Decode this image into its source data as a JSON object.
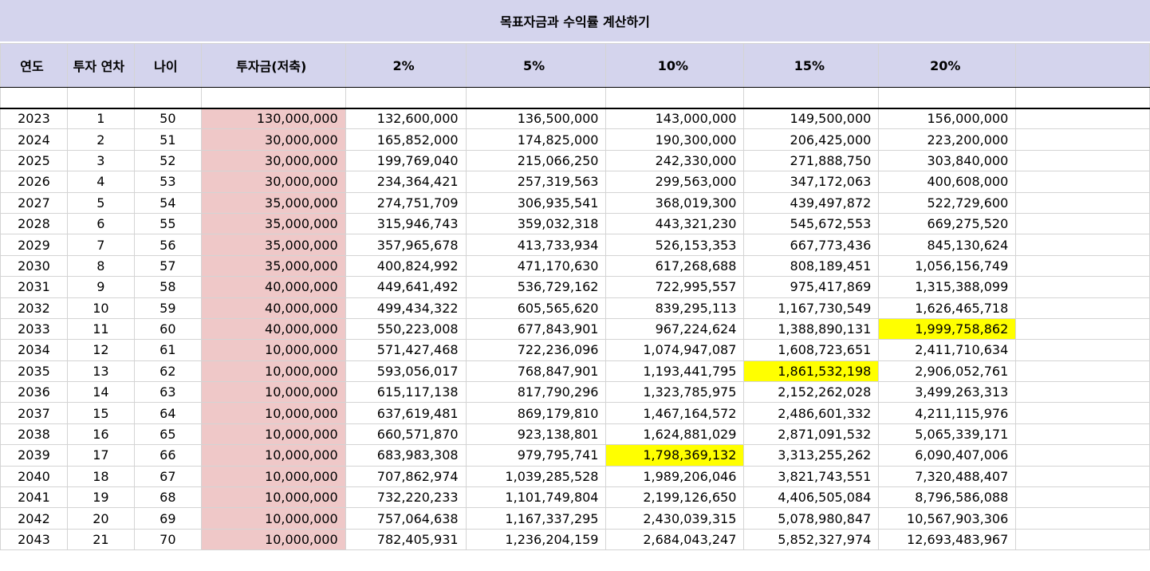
{
  "title": "목표자금과 수익률 계산하기",
  "headers": [
    "연도",
    "투자 연차",
    "나이",
    "투자금(저축)",
    "2%",
    "5%",
    "10%",
    "15%",
    "20%",
    ""
  ],
  "colors": {
    "header_bg": "#d4d4ed",
    "investment_bg": "#efc8c8",
    "highlight": "#ffff00"
  },
  "rows": [
    [
      "2023",
      "1",
      "50",
      "130,000,000",
      "132,600,000",
      "136,500,000",
      "143,000,000",
      "149,500,000",
      "156,000,000"
    ],
    [
      "2024",
      "2",
      "51",
      "30,000,000",
      "165,852,000",
      "174,825,000",
      "190,300,000",
      "206,425,000",
      "223,200,000"
    ],
    [
      "2025",
      "3",
      "52",
      "30,000,000",
      "199,769,040",
      "215,066,250",
      "242,330,000",
      "271,888,750",
      "303,840,000"
    ],
    [
      "2026",
      "4",
      "53",
      "30,000,000",
      "234,364,421",
      "257,319,563",
      "299,563,000",
      "347,172,063",
      "400,608,000"
    ],
    [
      "2027",
      "5",
      "54",
      "35,000,000",
      "274,751,709",
      "306,935,541",
      "368,019,300",
      "439,497,872",
      "522,729,600"
    ],
    [
      "2028",
      "6",
      "55",
      "35,000,000",
      "315,946,743",
      "359,032,318",
      "443,321,230",
      "545,672,553",
      "669,275,520"
    ],
    [
      "2029",
      "7",
      "56",
      "35,000,000",
      "357,965,678",
      "413,733,934",
      "526,153,353",
      "667,773,436",
      "845,130,624"
    ],
    [
      "2030",
      "8",
      "57",
      "35,000,000",
      "400,824,992",
      "471,170,630",
      "617,268,688",
      "808,189,451",
      "1,056,156,749"
    ],
    [
      "2031",
      "9",
      "58",
      "40,000,000",
      "449,641,492",
      "536,729,162",
      "722,995,557",
      "975,417,869",
      "1,315,388,099"
    ],
    [
      "2032",
      "10",
      "59",
      "40,000,000",
      "499,434,322",
      "605,565,620",
      "839,295,113",
      "1,167,730,549",
      "1,626,465,718"
    ],
    [
      "2033",
      "11",
      "60",
      "40,000,000",
      "550,223,008",
      "677,843,901",
      "967,224,624",
      "1,388,890,131",
      "1,999,758,862"
    ],
    [
      "2034",
      "12",
      "61",
      "10,000,000",
      "571,427,468",
      "722,236,096",
      "1,074,947,087",
      "1,608,723,651",
      "2,411,710,634"
    ],
    [
      "2035",
      "13",
      "62",
      "10,000,000",
      "593,056,017",
      "768,847,901",
      "1,193,441,795",
      "1,861,532,198",
      "2,906,052,761"
    ],
    [
      "2036",
      "14",
      "63",
      "10,000,000",
      "615,117,138",
      "817,790,296",
      "1,323,785,975",
      "2,152,262,028",
      "3,499,263,313"
    ],
    [
      "2037",
      "15",
      "64",
      "10,000,000",
      "637,619,481",
      "869,179,810",
      "1,467,164,572",
      "2,486,601,332",
      "4,211,115,976"
    ],
    [
      "2038",
      "16",
      "65",
      "10,000,000",
      "660,571,870",
      "923,138,801",
      "1,624,881,029",
      "2,871,091,532",
      "5,065,339,171"
    ],
    [
      "2039",
      "17",
      "66",
      "10,000,000",
      "683,983,308",
      "979,795,741",
      "1,798,369,132",
      "3,313,255,262",
      "6,090,407,006"
    ],
    [
      "2040",
      "18",
      "67",
      "10,000,000",
      "707,862,974",
      "1,039,285,528",
      "1,989,206,046",
      "3,821,743,551",
      "7,320,488,407"
    ],
    [
      "2041",
      "19",
      "68",
      "10,000,000",
      "732,220,233",
      "1,101,749,804",
      "2,199,126,650",
      "4,406,505,084",
      "8,796,586,088"
    ],
    [
      "2042",
      "20",
      "69",
      "10,000,000",
      "757,064,638",
      "1,167,337,295",
      "2,430,039,315",
      "5,078,980,847",
      "10,567,903,306"
    ],
    [
      "2043",
      "21",
      "70",
      "10,000,000",
      "782,405,931",
      "1,236,204,159",
      "2,684,043,247",
      "5,852,327,974",
      "12,693,483,967"
    ]
  ],
  "highlights": [
    {
      "row": 10,
      "col": 8
    },
    {
      "row": 12,
      "col": 7
    },
    {
      "row": 16,
      "col": 6
    }
  ]
}
